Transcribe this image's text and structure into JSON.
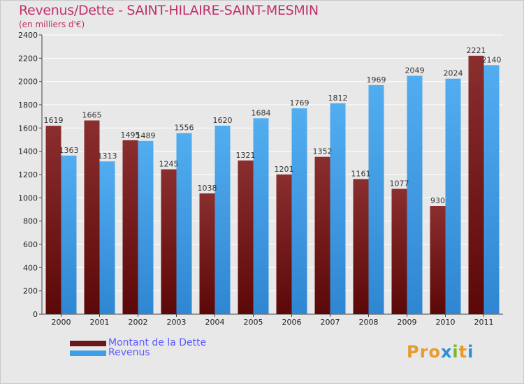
{
  "title": "Revenus/Dette - SAINT-HILAIRE-SAINT-MESMIN",
  "subtitle": "(en milliers d'€)",
  "logo": "Proxiti",
  "colors": {
    "debt": "#7a1d1d",
    "revenue": "#3f9ee8",
    "title": "#c0306a"
  },
  "legend": [
    {
      "label": "Montant de la Dette",
      "color": "#6b1818"
    },
    {
      "label": "Revenus",
      "color": "#3f9ee8"
    }
  ],
  "chart_data": {
    "type": "bar",
    "categories": [
      "2000",
      "2001",
      "2002",
      "2003",
      "2004",
      "2005",
      "2006",
      "2007",
      "2008",
      "2009",
      "2010",
      "2011"
    ],
    "series": [
      {
        "name": "Montant de la Dette",
        "values": [
          1619,
          1665,
          1495,
          1245,
          1038,
          1321,
          1201,
          1352,
          1161,
          1077,
          930,
          2221
        ]
      },
      {
        "name": "Revenus",
        "values": [
          1363,
          1313,
          1489,
          1556,
          1620,
          1684,
          1769,
          1812,
          1969,
          2049,
          2024,
          2140
        ]
      }
    ],
    "ylim": [
      0,
      2400
    ],
    "yticks": [
      0,
      200,
      400,
      600,
      800,
      1000,
      1200,
      1400,
      1600,
      1800,
      2000,
      2200,
      2400
    ],
    "grid": true,
    "legend_position": "bottom-left"
  }
}
